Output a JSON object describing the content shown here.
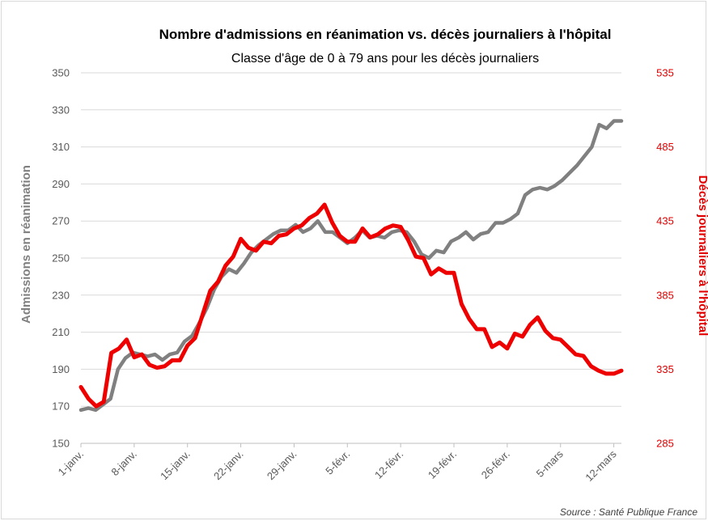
{
  "colors": {
    "series_gray": "#808080",
    "series_red": "#ee0000",
    "grid": "#d9d9d9",
    "axis": "#bfbfbf",
    "border": "#d9d9d9"
  },
  "source": "Source : Santé Publique France",
  "chart_data": {
    "type": "line",
    "title": "Nombre d'admissions en réanimation vs. décès journaliers à l'hôpital",
    "subtitle": "Classe d'âge de 0 à 79 ans pour les décès journaliers",
    "ylabel_left": "Admissions en réanimation",
    "ylabel_right": "Décès journaliers à l'hôpital",
    "ylim_left": [
      150,
      350
    ],
    "yticks_left": [
      150,
      170,
      190,
      210,
      230,
      250,
      270,
      290,
      310,
      330,
      350
    ],
    "ylim_right": [
      285,
      535
    ],
    "yticks_right": [
      285,
      335,
      385,
      435,
      485,
      535
    ],
    "grid": true,
    "legend": "none",
    "x_tick_labels": [
      "1-janv.",
      "8-janv.",
      "15-janv.",
      "22-janv.",
      "29-janv.",
      "5-févr.",
      "12-févr.",
      "19-févr.",
      "26-févr.",
      "5-mars",
      "12-mars"
    ],
    "series": [
      {
        "axis": "left",
        "values": [
          168,
          169,
          168,
          171,
          174,
          190,
          196,
          199,
          198,
          197,
          198,
          195,
          198,
          199,
          205,
          208,
          215,
          223,
          233,
          240,
          244,
          242,
          247,
          253,
          257,
          260,
          263,
          265,
          265,
          268,
          264,
          266,
          270,
          264,
          264,
          261,
          258,
          261,
          265,
          261,
          262,
          261,
          264,
          265,
          264,
          259,
          252,
          250,
          254,
          253,
          259,
          261,
          264,
          260,
          263,
          264,
          269,
          269,
          271,
          274,
          284,
          287,
          288,
          287,
          289,
          292,
          296,
          300,
          305,
          310,
          322,
          320,
          324,
          324
        ],
        "name": ""
      },
      {
        "axis": "right",
        "values": [
          323,
          315,
          310,
          313,
          346,
          349,
          355,
          343,
          345,
          338,
          336,
          337,
          341,
          341,
          351,
          356,
          372,
          388,
          394,
          405,
          411,
          423,
          417,
          415,
          421,
          420,
          425,
          426,
          430,
          432,
          437,
          440,
          446,
          434,
          425,
          421,
          421,
          430,
          424,
          426,
          430,
          432,
          431,
          422,
          411,
          410,
          399,
          403,
          400,
          400,
          379,
          369,
          362,
          362,
          350,
          353,
          349,
          359,
          357,
          365,
          370,
          361,
          356,
          355,
          350,
          345,
          344,
          337,
          334,
          332,
          332,
          334
        ],
        "name": ""
      }
    ]
  }
}
